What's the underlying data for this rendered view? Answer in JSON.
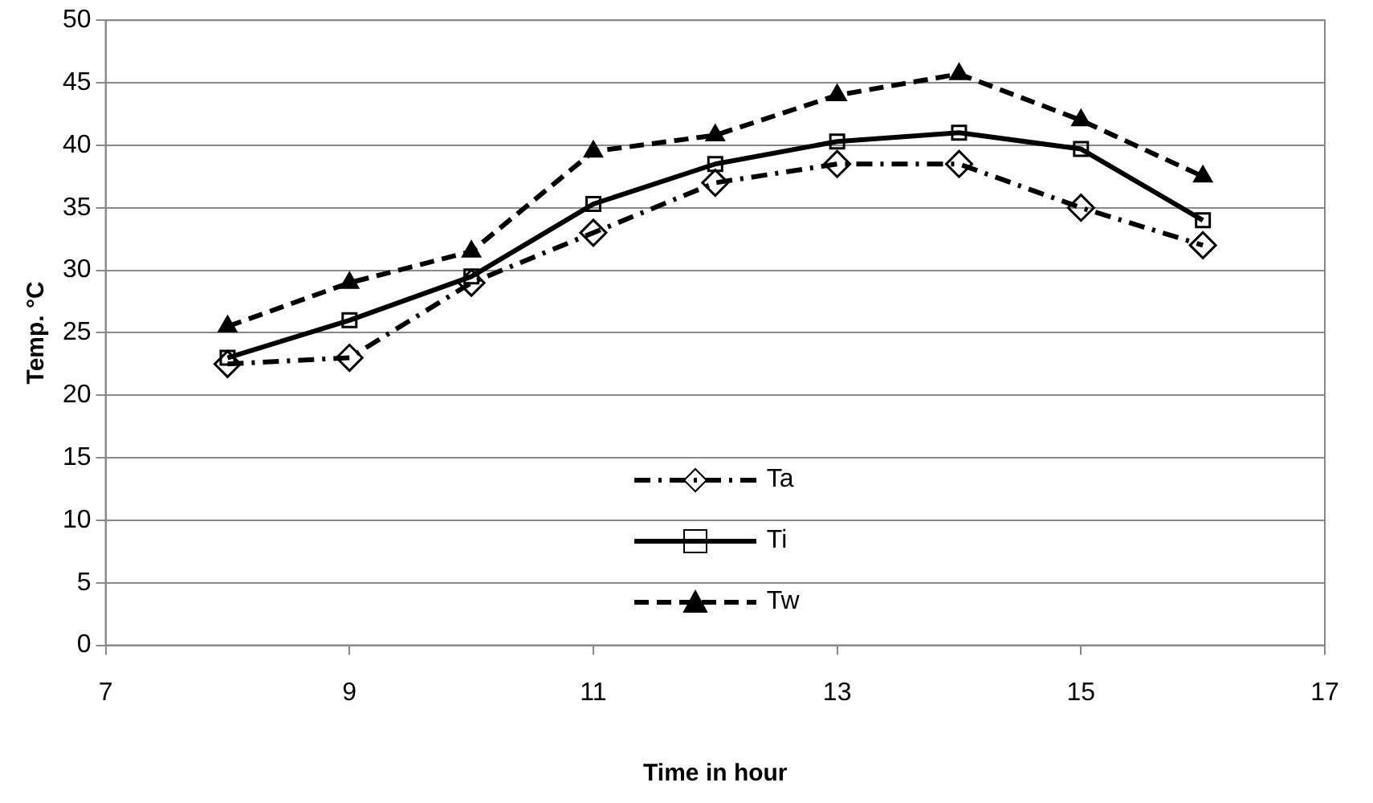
{
  "chart_data": {
    "type": "line",
    "xlabel": "Time in hour",
    "ylabel": "Temp. °C",
    "x": [
      8,
      9,
      10,
      11,
      12,
      13,
      14,
      15,
      16
    ],
    "series": [
      {
        "name": "Ta",
        "color": "#000000",
        "marker": "diamond",
        "line_style": "dashdot",
        "values": [
          22.5,
          23,
          29,
          33,
          37,
          38.5,
          38.5,
          35,
          32
        ]
      },
      {
        "name": "Ti",
        "color": "#000000",
        "marker": "square",
        "line_style": "solid",
        "values": [
          23,
          26,
          29.5,
          35.3,
          38.5,
          40.3,
          41,
          39.7,
          34
        ]
      },
      {
        "name": "Tw",
        "color": "#000000",
        "marker": "triangle",
        "line_style": "dashed",
        "values": [
          25.5,
          29,
          31.5,
          39.5,
          40.8,
          44,
          45.7,
          42,
          37.5
        ]
      }
    ],
    "xlim": [
      7,
      17
    ],
    "xticks": [
      7,
      9,
      11,
      13,
      15,
      17
    ],
    "ylim": [
      0,
      50
    ],
    "yticks": [
      0,
      5,
      10,
      15,
      20,
      25,
      30,
      35,
      40,
      45,
      50
    ],
    "grid": "y",
    "legend": "bottom"
  }
}
